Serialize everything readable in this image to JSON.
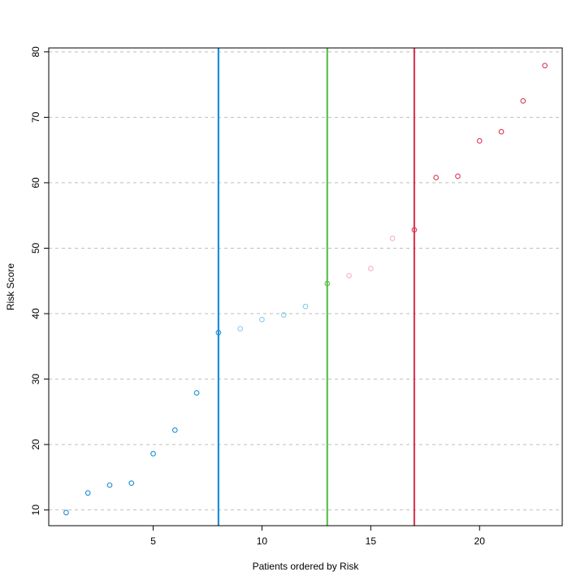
{
  "chart_data": {
    "type": "scatter",
    "title": "",
    "xlabel": "Patients ordered by Risk",
    "ylabel": "Risk Score",
    "xlim": [
      0.2,
      23.8
    ],
    "ylim": [
      7.6,
      80.6
    ],
    "xticks": [
      5,
      10,
      15,
      20
    ],
    "yticks": [
      10,
      20,
      30,
      40,
      50,
      60,
      70,
      80
    ],
    "grid": {
      "horizontal": true,
      "style": "dashed",
      "color": "#bebebe"
    },
    "colors": {
      "blue": "#1b8fd8",
      "light_blue": "#87cbec",
      "green": "#59c14a",
      "pink": "#f4b3be",
      "red": "#dc3a55"
    },
    "series": [
      {
        "x": [
          1,
          2,
          3,
          4,
          5,
          6,
          7,
          8
        ],
        "y": [
          9.6,
          12.6,
          13.8,
          14.1,
          18.6,
          22.2,
          27.9,
          37.1
        ],
        "color": "#1b8fd8"
      },
      {
        "x": [
          9,
          10,
          11,
          12
        ],
        "y": [
          37.7,
          39.1,
          39.8,
          41.1
        ],
        "color": "#87cbec"
      },
      {
        "x": [
          13
        ],
        "y": [
          44.6
        ],
        "color": "#59c14a"
      },
      {
        "x": [
          14,
          15,
          16
        ],
        "y": [
          45.8,
          46.9,
          51.5
        ],
        "color": "#f4b3be"
      },
      {
        "x": [
          17,
          18,
          19,
          20,
          21,
          22,
          23
        ],
        "y": [
          52.8,
          60.8,
          61.0,
          66.4,
          67.8,
          72.5,
          77.9
        ],
        "color": "#dc3a55"
      }
    ],
    "vlines": [
      {
        "x": 8,
        "color": "#1b8fd8"
      },
      {
        "x": 13,
        "color": "#59c14a"
      },
      {
        "x": 17,
        "color": "#dc3a55"
      }
    ]
  }
}
